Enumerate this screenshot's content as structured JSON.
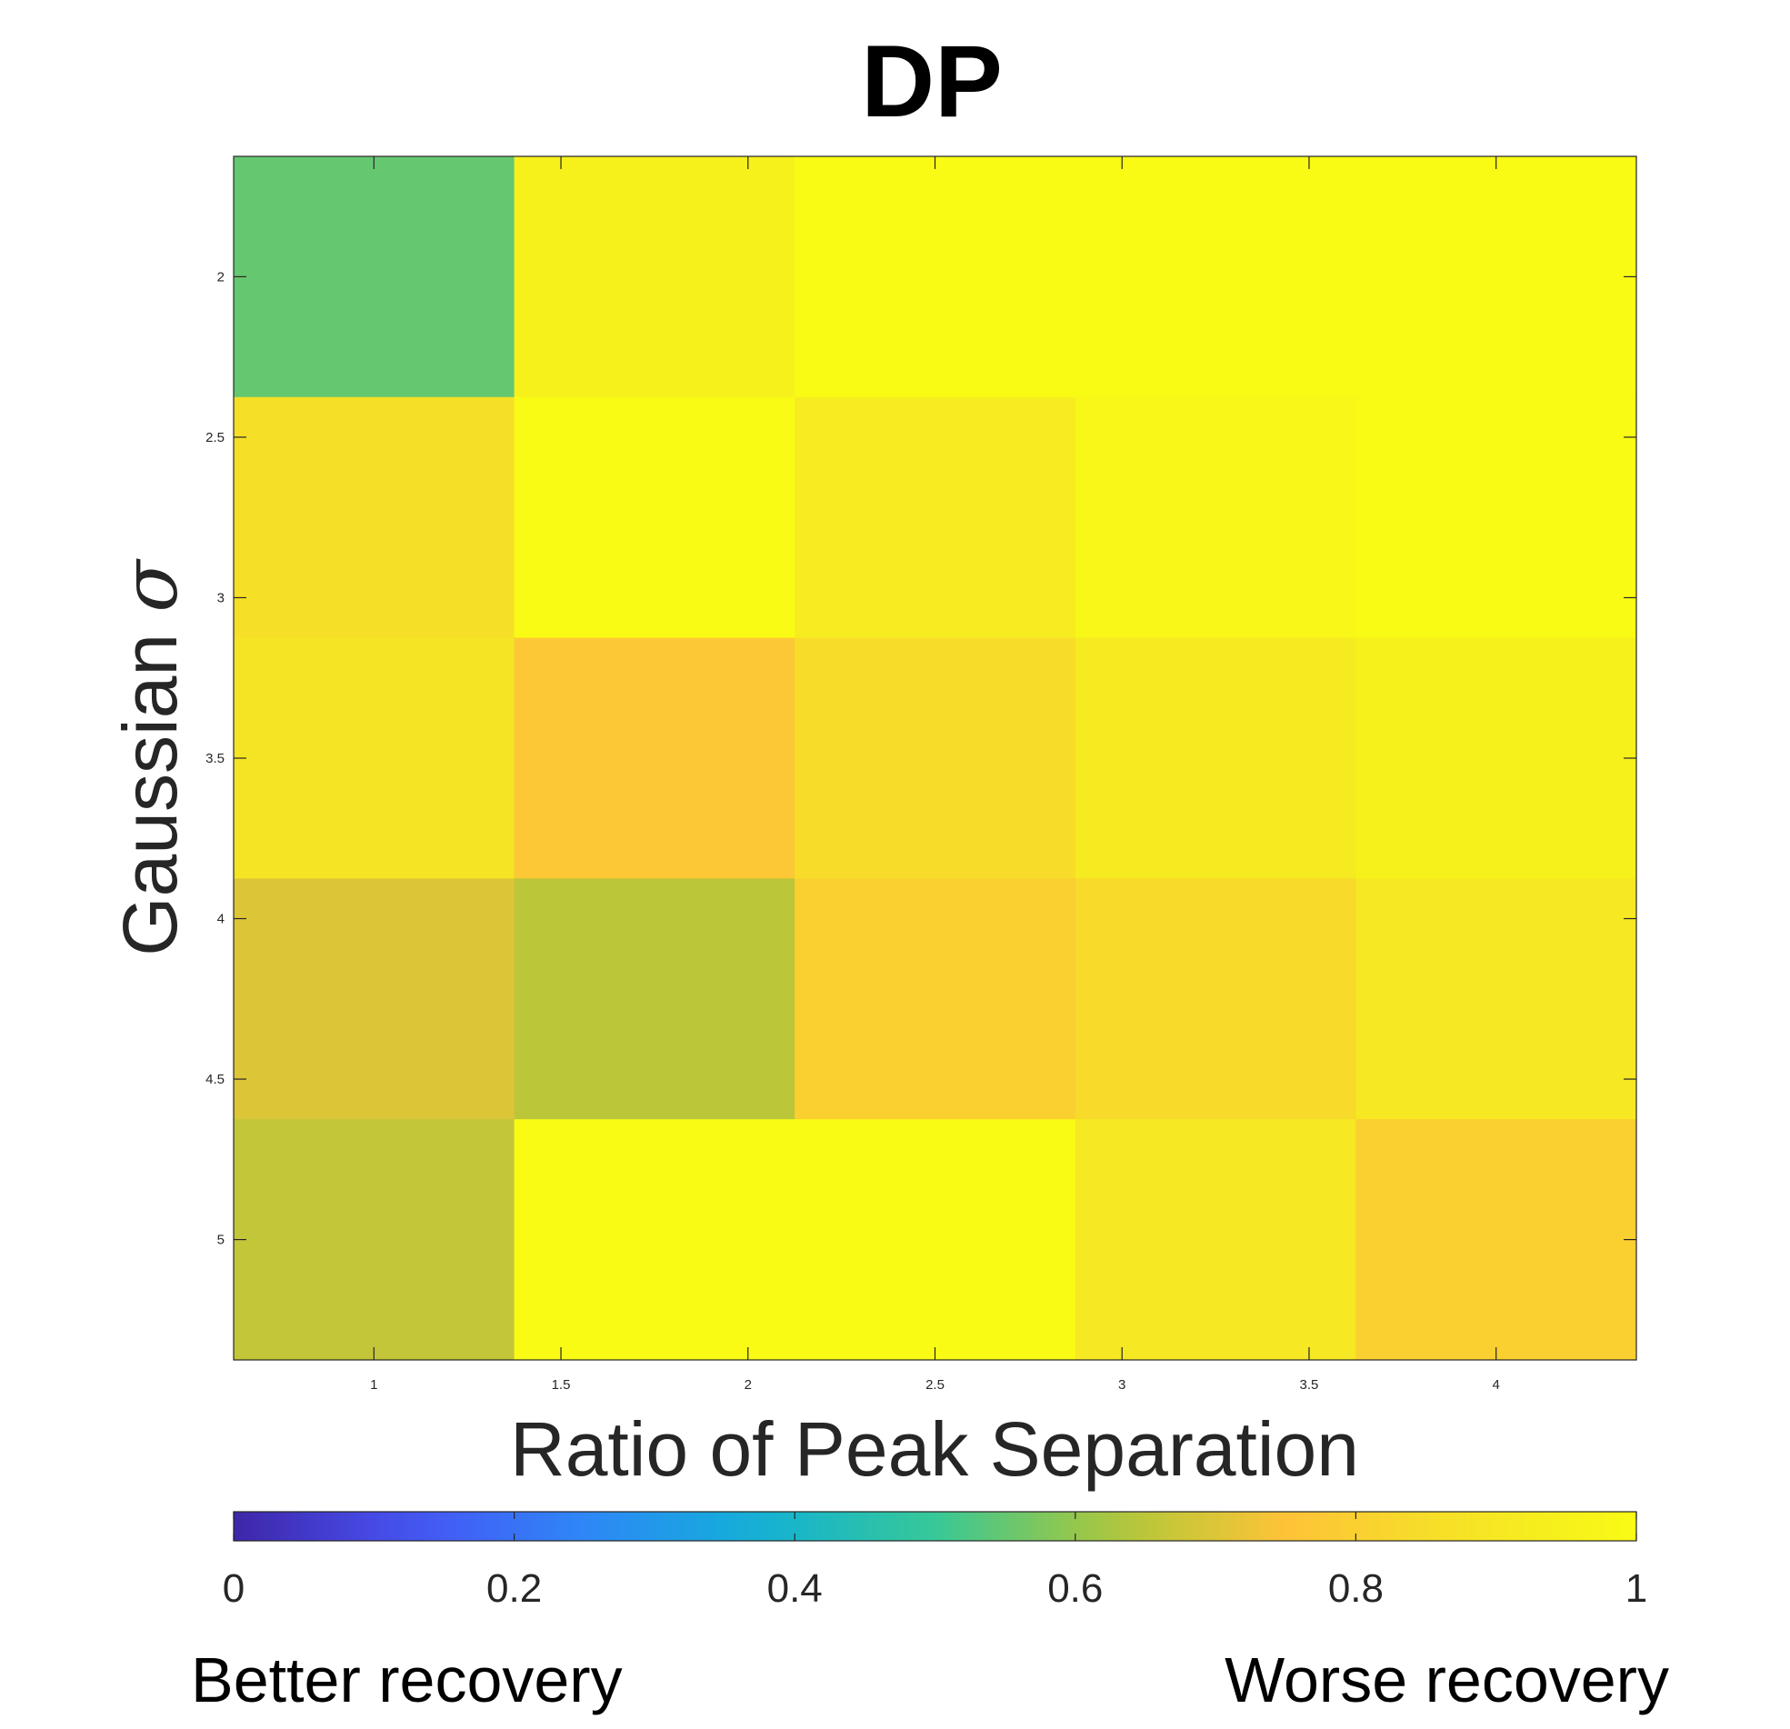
{
  "chart_data": {
    "type": "heatmap",
    "title": "DP",
    "xlabel": "Ratio of Peak Separation",
    "ylabel_text": "Gaussian",
    "ylabel_symbol": "σ",
    "x_categories": [
      1,
      1.5,
      2,
      2.5,
      3
    ],
    "y_categories": [
      2,
      2.5,
      3,
      3.5,
      4
    ],
    "x_ticks": [
      1,
      1.5,
      2,
      2.5,
      3,
      3.5,
      4
    ],
    "x_tick_labels": [
      "1",
      "1.5",
      "2",
      "2.5",
      "3",
      "3.5",
      "4"
    ],
    "y_ticks": [
      2,
      2.5,
      3,
      3.5,
      4,
      4.5,
      5
    ],
    "y_tick_labels": [
      "2",
      "2.5",
      "3",
      "3.5",
      "4",
      "4.5",
      "5"
    ],
    "xlim": [
      0.625,
      4.375
    ],
    "ylim": [
      1.625,
      5.375
    ],
    "values": [
      [
        0.55,
        0.95,
        1.0,
        1.0,
        1.0
      ],
      [
        0.86,
        1.0,
        0.92,
        0.98,
        1.0
      ],
      [
        0.88,
        0.77,
        0.85,
        0.91,
        0.95
      ],
      [
        0.7,
        0.65,
        0.8,
        0.84,
        0.9
      ],
      [
        0.66,
        1.0,
        1.0,
        0.9,
        0.8
      ]
    ],
    "colorbar": {
      "min": 0,
      "max": 1,
      "ticks": [
        0,
        0.2,
        0.4,
        0.6,
        0.8,
        1
      ],
      "tick_labels": [
        "0",
        "0.2",
        "0.4",
        "0.6",
        "0.8",
        "1"
      ],
      "colormap": "parula",
      "left_note": "Better recovery",
      "right_note": "Worse recovery"
    }
  }
}
